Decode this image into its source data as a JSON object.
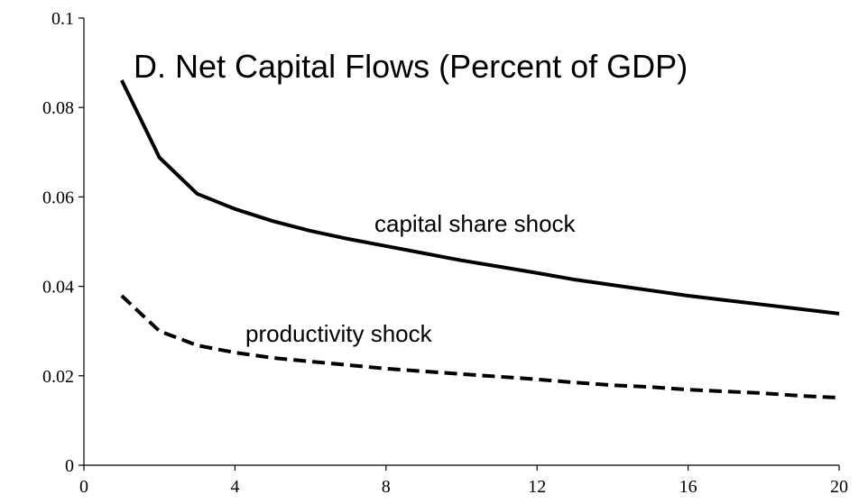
{
  "chart_data": {
    "type": "line",
    "title": "D. Net Capital Flows (Percent of GDP)",
    "x": [
      1,
      2,
      3,
      4,
      5,
      6,
      7,
      8,
      9,
      10,
      11,
      12,
      13,
      14,
      15,
      16,
      17,
      18,
      19,
      20
    ],
    "series": [
      {
        "name": "capital share shock",
        "color": "#000000",
        "dash": "solid",
        "values": [
          0.0861,
          0.0688,
          0.0607,
          0.0573,
          0.0546,
          0.0524,
          0.0506,
          0.049,
          0.0474,
          0.0458,
          0.0444,
          0.043,
          0.0415,
          0.0403,
          0.0391,
          0.0379,
          0.0369,
          0.0359,
          0.0349,
          0.0339
        ]
      },
      {
        "name": "productivity shock",
        "color": "#000000",
        "dash": "dashed",
        "values": [
          0.0379,
          0.03,
          0.0268,
          0.0252,
          0.024,
          0.0232,
          0.0224,
          0.0216,
          0.021,
          0.0204,
          0.0198,
          0.0192,
          0.0185,
          0.0179,
          0.0175,
          0.0169,
          0.0165,
          0.0161,
          0.0155,
          0.0151
        ]
      }
    ],
    "xlim": [
      0,
      20
    ],
    "xticks": [
      0,
      4,
      8,
      12,
      16,
      20
    ],
    "ylim": [
      0,
      0.1
    ],
    "yticks": [
      0,
      0.02,
      0.04,
      0.06,
      0.08,
      0.1
    ],
    "grid": false
  }
}
